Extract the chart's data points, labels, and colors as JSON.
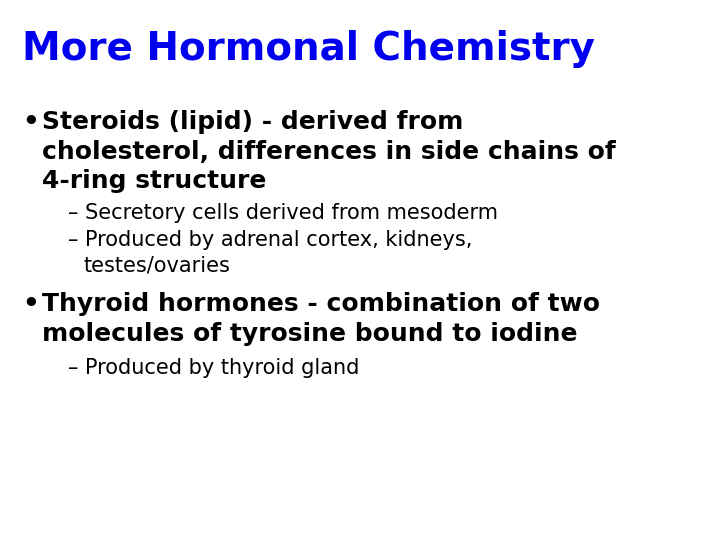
{
  "title": "More Hormonal Chemistry",
  "title_color": "#0000EE",
  "title_fontsize": 28,
  "background_color": "#FFFFFF",
  "bullet1_line1": "Steroids (lipid) - derived from",
  "bullet1_line2": "cholesterol, differences in side chains of",
  "bullet1_line3": "4-ring structure",
  "bullet1_fontsize": 18,
  "sub1a": "– Secretory cells derived from mesoderm",
  "sub1b_line1": "– Produced by adrenal cortex, kidneys,",
  "sub1b_line2": "   testes/ovaries",
  "sub_fontsize": 15,
  "bullet2_line1": "Thyroid hormones - combination of two",
  "bullet2_line2": "molecules of tyrosine bound to iodine",
  "bullet2_fontsize": 18,
  "sub2a": "– Produced by thyroid gland",
  "text_color": "#000000"
}
